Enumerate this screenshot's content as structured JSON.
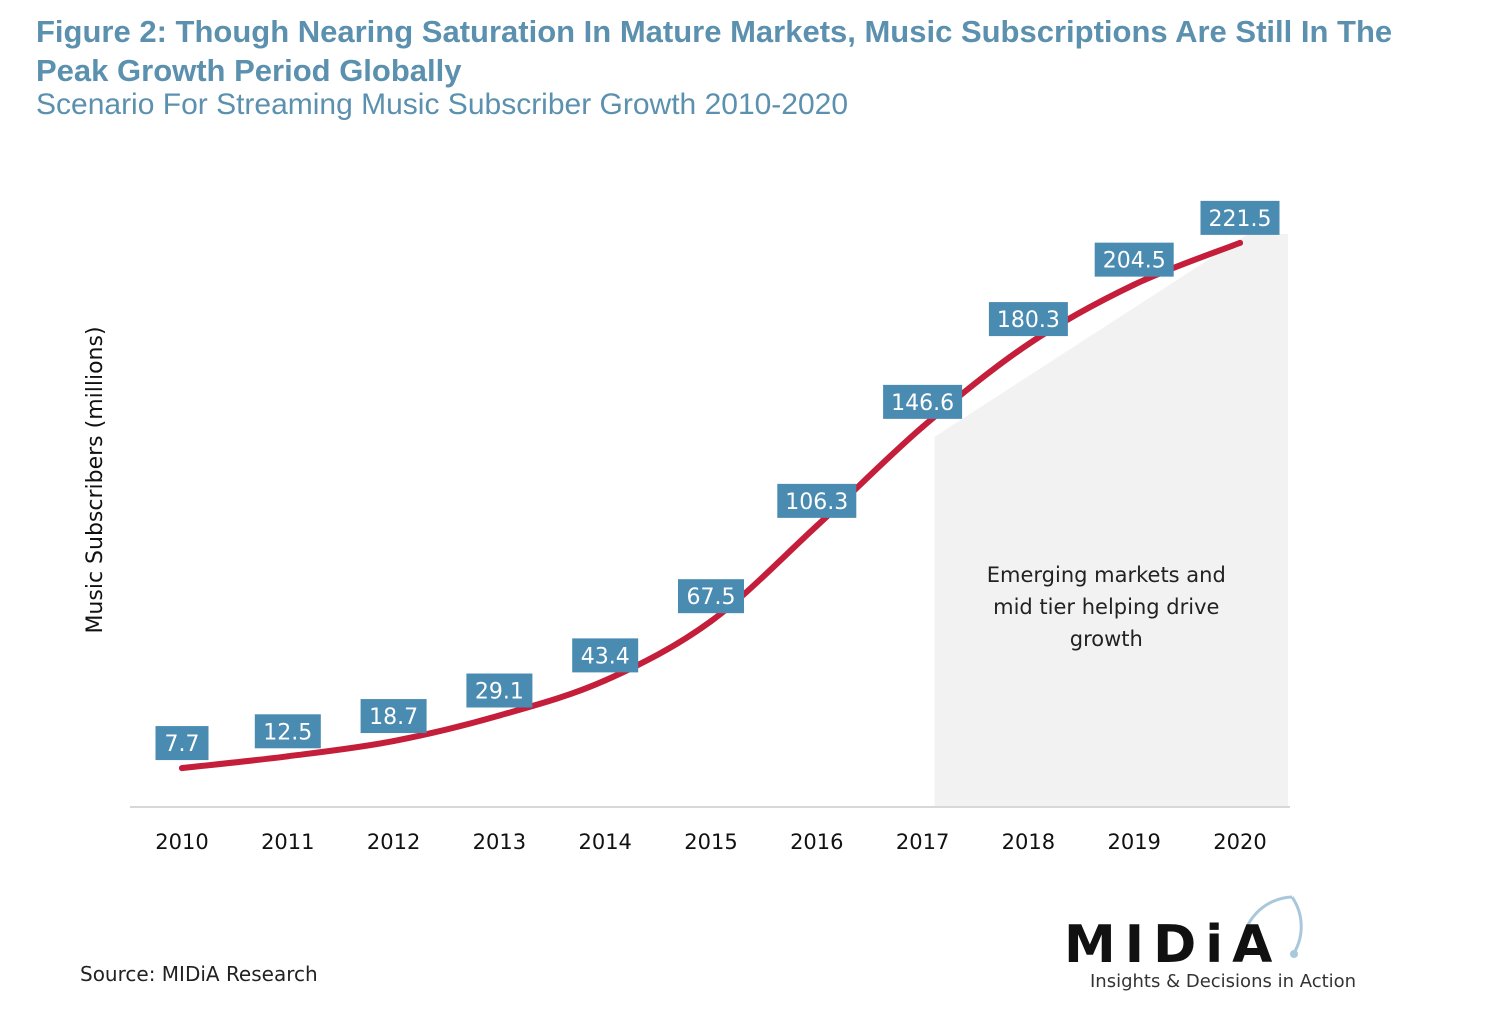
{
  "header": {
    "title": "Figure 2: Though Nearing Saturation In Mature Markets, Music Subscriptions Are Still In The Peak Growth Period Globally",
    "subtitle": "Scenario For Streaming Music Subscriber Growth 2010-2020"
  },
  "chart_data": {
    "type": "line",
    "title": "Figure 2: Though Nearing Saturation In Mature Markets, Music Subscriptions Are Still In The Peak Growth Period Globally",
    "subtitle": "Scenario For Streaming Music Subscriber Growth 2010-2020",
    "xlabel": "",
    "ylabel": "Music Subscribers (millions)",
    "categories": [
      "2010",
      "2011",
      "2012",
      "2013",
      "2014",
      "2015",
      "2016",
      "2017",
      "2018",
      "2019",
      "2020"
    ],
    "series": [
      {
        "values": [
          7.7,
          12.5,
          18.7,
          29.1,
          43.4,
          67.5,
          106.3,
          146.6,
          180.3,
          204.5,
          221.5
        ]
      }
    ],
    "ylim": [
      0,
      230
    ],
    "grid": false,
    "data_labels": true,
    "highlight_region": {
      "from": "2017",
      "to": "2020"
    },
    "annotation": [
      "Emerging markets and",
      "mid tier helping drive",
      "growth"
    ],
    "colors": {
      "line": "#c41e3a",
      "label_bg": "#4a8bb2",
      "label_text": "#ffffff",
      "shade": "#f2f2f2",
      "axis": "#d8d8d8"
    }
  },
  "footer": {
    "source": "Source: MIDiA Research",
    "logo_text": "MIDiA",
    "logo_tagline": "Insights & Decisions in Action",
    "logo_dot_color": "#a9c8dc"
  }
}
